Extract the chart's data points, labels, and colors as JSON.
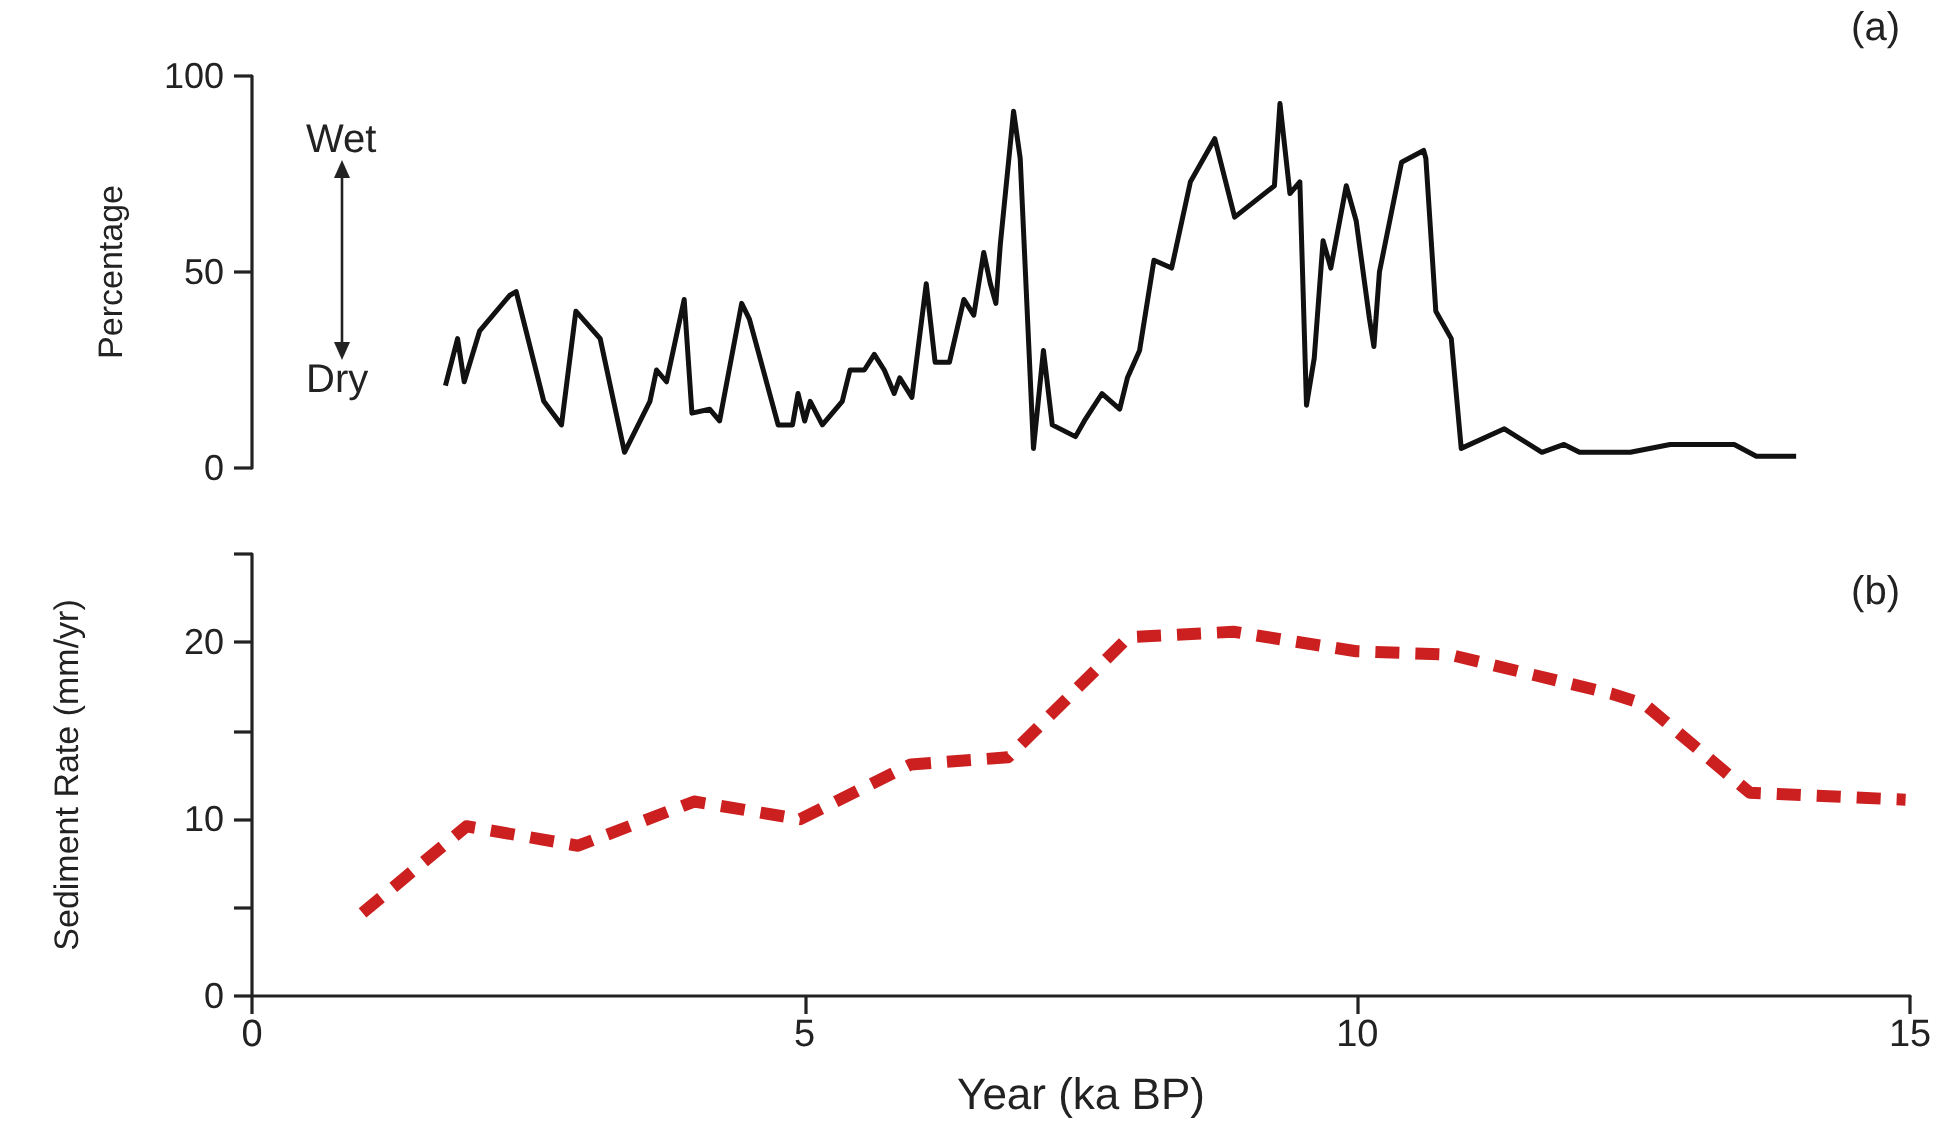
{
  "chart_data": [
    {
      "type": "line",
      "ylabel": "Percentage",
      "annotations": [
        "(a)",
        "Wet",
        "Dry"
      ],
      "xlim": [
        0,
        15
      ],
      "ylim": [
        0,
        100
      ],
      "yticks": [
        0,
        50,
        100
      ],
      "tick_labels": "y",
      "marker": "none",
      "line_style": "solid",
      "series": [
        {
          "color": "#111111",
          "x": [
            1.75,
            1.86,
            1.92,
            2.06,
            2.33,
            2.39,
            2.64,
            2.8,
            2.93,
            3.15,
            3.37,
            3.6,
            3.66,
            3.75,
            3.91,
            3.98,
            4.14,
            4.23,
            4.43,
            4.5,
            4.76,
            4.89,
            4.94,
            5.0,
            5.05,
            5.16,
            5.34,
            5.41,
            5.54,
            5.63,
            5.72,
            5.81,
            5.86,
            5.97,
            6.1,
            6.18,
            6.31,
            6.44,
            6.53,
            6.62,
            6.68,
            6.73,
            6.77,
            6.89,
            6.95,
            7.07,
            7.16,
            7.24,
            7.45,
            7.53,
            7.69,
            7.85,
            7.92,
            8.03,
            8.16,
            8.32,
            8.49,
            8.71,
            8.89,
            9.25,
            9.3,
            9.39,
            9.48,
            9.54,
            9.61,
            9.69,
            9.76,
            9.9,
            9.99,
            10.11,
            10.15,
            10.2,
            10.4,
            10.6,
            10.62,
            10.71,
            10.85,
            10.94,
            11.33,
            11.67,
            11.87,
            12.01,
            12.47,
            12.83,
            13.41,
            13.61,
            13.97
          ],
          "values": [
            21,
            33,
            22,
            35,
            44,
            45,
            17,
            11,
            40,
            33,
            4,
            17,
            25,
            22,
            43,
            14,
            15,
            12,
            42,
            38,
            11,
            11,
            19,
            12,
            17,
            11,
            17,
            25,
            25,
            29,
            25,
            19,
            23,
            18,
            47,
            27,
            27,
            43,
            39,
            55,
            47,
            42,
            57,
            91,
            79,
            5,
            30,
            11,
            8,
            12,
            19,
            15,
            23,
            30,
            53,
            51,
            73,
            84,
            64,
            72,
            93,
            70,
            73,
            16,
            28,
            58,
            51,
            72,
            63,
            38,
            31,
            50,
            78,
            81,
            79,
            40,
            33,
            5,
            10,
            4,
            6,
            4,
            4,
            6,
            6,
            3,
            3
          ]
        }
      ]
    },
    {
      "type": "line",
      "xlabel": "Year (ka BP)",
      "ylabel": "Sediment Rate (mm/yr)",
      "annotations": [
        "(b)"
      ],
      "xlim": [
        0,
        15
      ],
      "xticks": [
        0,
        5,
        10,
        15
      ],
      "ylim": [
        0,
        25
      ],
      "yticks": [
        0,
        {
          "value": 5,
          "label": null
        },
        10,
        {
          "value": 15,
          "label": null
        },
        20,
        {
          "value": 25,
          "label": null
        }
      ],
      "marker": "none",
      "line_style": "dashed",
      "series": [
        {
          "color": "#cc1f1f",
          "x": [
            1.0,
            1.94,
            2.95,
            4.0,
            4.96,
            5.96,
            6.84,
            7.93,
            8.88,
            9.99,
            10.84,
            12.3,
            12.6,
            13.55,
            14.96
          ],
          "values": [
            4.7,
            9.6,
            8.5,
            11,
            10,
            13.1,
            13.5,
            20.3,
            20.6,
            19.5,
            19.3,
            17.1,
            16.5,
            11.5,
            11.1
          ]
        }
      ]
    }
  ]
}
